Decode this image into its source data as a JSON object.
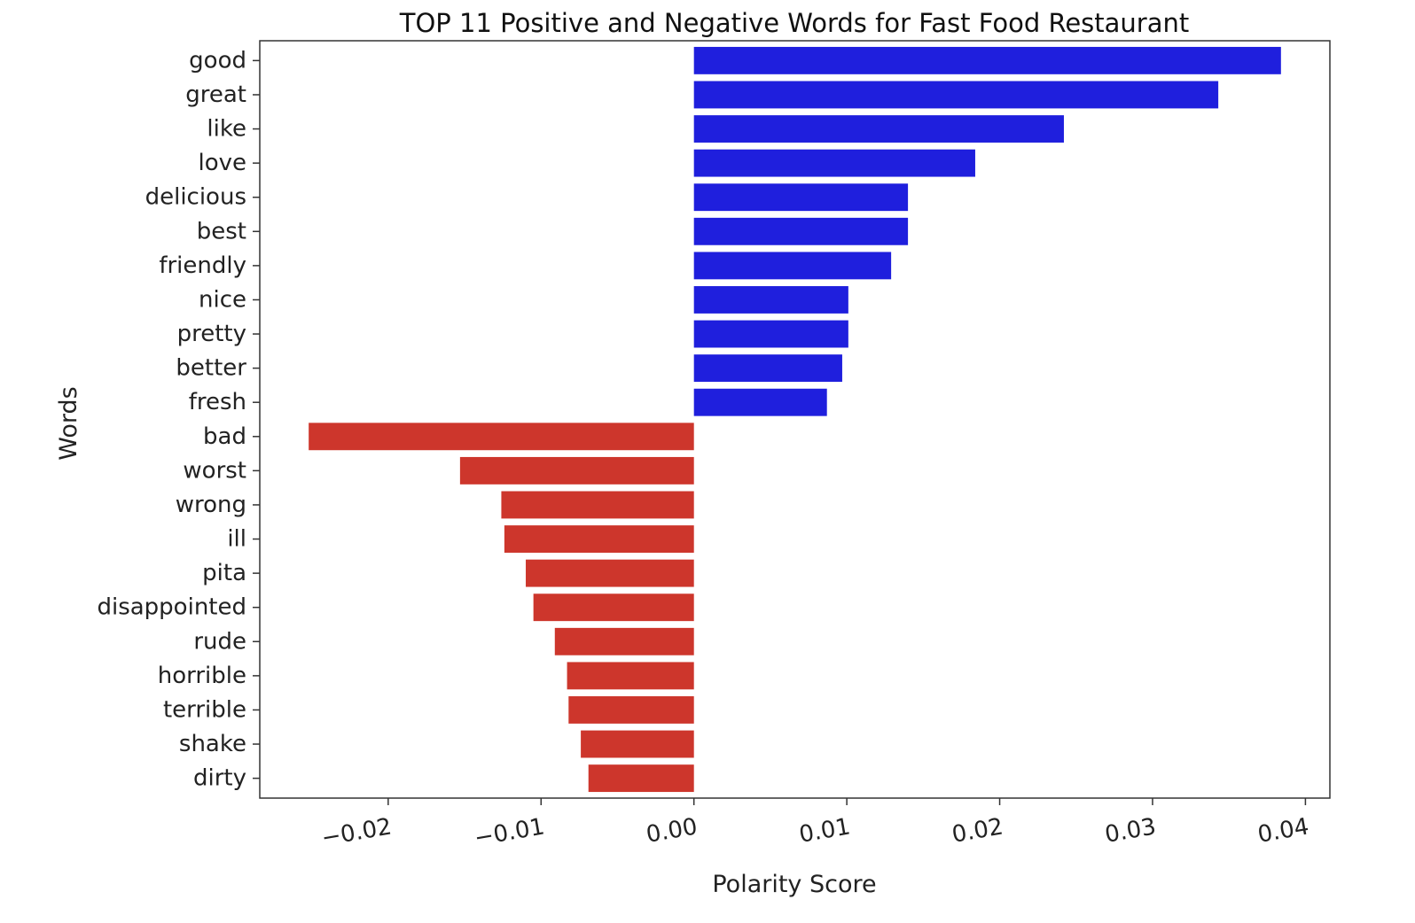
{
  "chart_data": {
    "type": "bar",
    "orientation": "horizontal",
    "title": "TOP 11 Positive and Negative Words for Fast Food Restaurant",
    "xlabel": "Polarity Score",
    "ylabel": "Words",
    "xlim": [
      -0.0284,
      0.0416
    ],
    "xticks": [
      -0.02,
      -0.01,
      0.0,
      0.01,
      0.02,
      0.03,
      0.04
    ],
    "xtick_labels": [
      "−0.02",
      "−0.01",
      "0.00",
      "0.01",
      "0.02",
      "0.03",
      "0.04"
    ],
    "grid": false,
    "series": [
      {
        "name": "Positive",
        "color": "#1f1fdd",
        "categories": [
          "good",
          "great",
          "like",
          "love",
          "delicious",
          "best",
          "friendly",
          "nice",
          "pretty",
          "better",
          "fresh"
        ],
        "values": [
          0.0384,
          0.0343,
          0.0242,
          0.0184,
          0.014,
          0.014,
          0.0129,
          0.0101,
          0.0101,
          0.0097,
          0.0087
        ]
      },
      {
        "name": "Negative",
        "color": "#cd362c",
        "categories": [
          "bad",
          "worst",
          "wrong",
          "ill",
          "pita",
          "disappointed",
          "rude",
          "horrible",
          "terrible",
          "shake",
          "dirty"
        ],
        "values": [
          -0.0252,
          -0.0153,
          -0.0126,
          -0.0124,
          -0.011,
          -0.0105,
          -0.0091,
          -0.0083,
          -0.0082,
          -0.0074,
          -0.0069
        ]
      }
    ]
  }
}
